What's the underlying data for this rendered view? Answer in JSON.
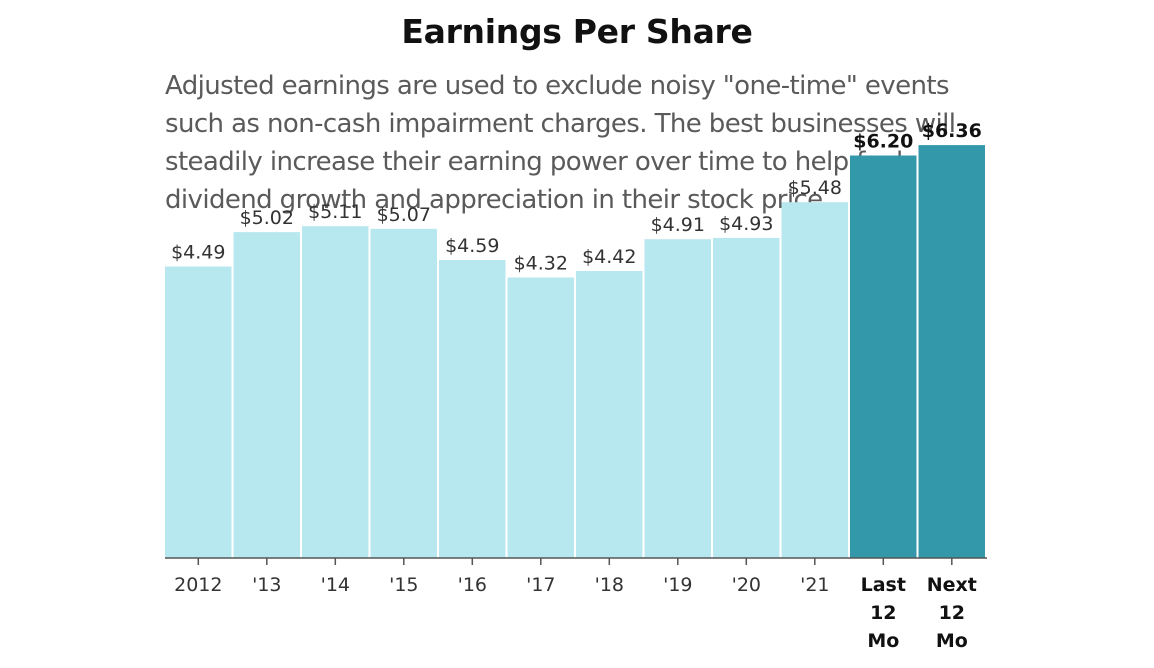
{
  "chart_data": {
    "type": "bar",
    "title": "Earnings Per Share",
    "description": [
      "Adjusted earnings are used to exclude noisy \"one-time\" events",
      "such as non-cash impairment charges. The best businesses will",
      "steadily increase their earning power over time to help fuel",
      "dividend growth and appreciation in their stock price."
    ],
    "categories": [
      [
        "2012"
      ],
      [
        "'13"
      ],
      [
        "'14"
      ],
      [
        "'15"
      ],
      [
        "'16"
      ],
      [
        "'17"
      ],
      [
        "'18"
      ],
      [
        "'19"
      ],
      [
        "'20"
      ],
      [
        "'21"
      ],
      [
        "Last",
        "12",
        "Mo"
      ],
      [
        "Next",
        "12",
        "Mo"
      ]
    ],
    "values": [
      4.49,
      5.02,
      5.11,
      5.07,
      4.59,
      4.32,
      4.42,
      4.91,
      4.93,
      5.48,
      6.2,
      6.36
    ],
    "value_labels": [
      "$4.49",
      "$5.02",
      "$5.11",
      "$5.07",
      "$4.59",
      "$4.32",
      "$4.42",
      "$4.91",
      "$4.93",
      "$5.48",
      "$6.20",
      "$6.36"
    ],
    "highlighted": [
      false,
      false,
      false,
      false,
      false,
      false,
      false,
      false,
      false,
      false,
      true,
      true
    ],
    "ylim": [
      0,
      6.5
    ],
    "grid": false,
    "colors": {
      "bar": "#b8e8ef",
      "highlight": "#3399aa",
      "axis": "#555555"
    }
  }
}
